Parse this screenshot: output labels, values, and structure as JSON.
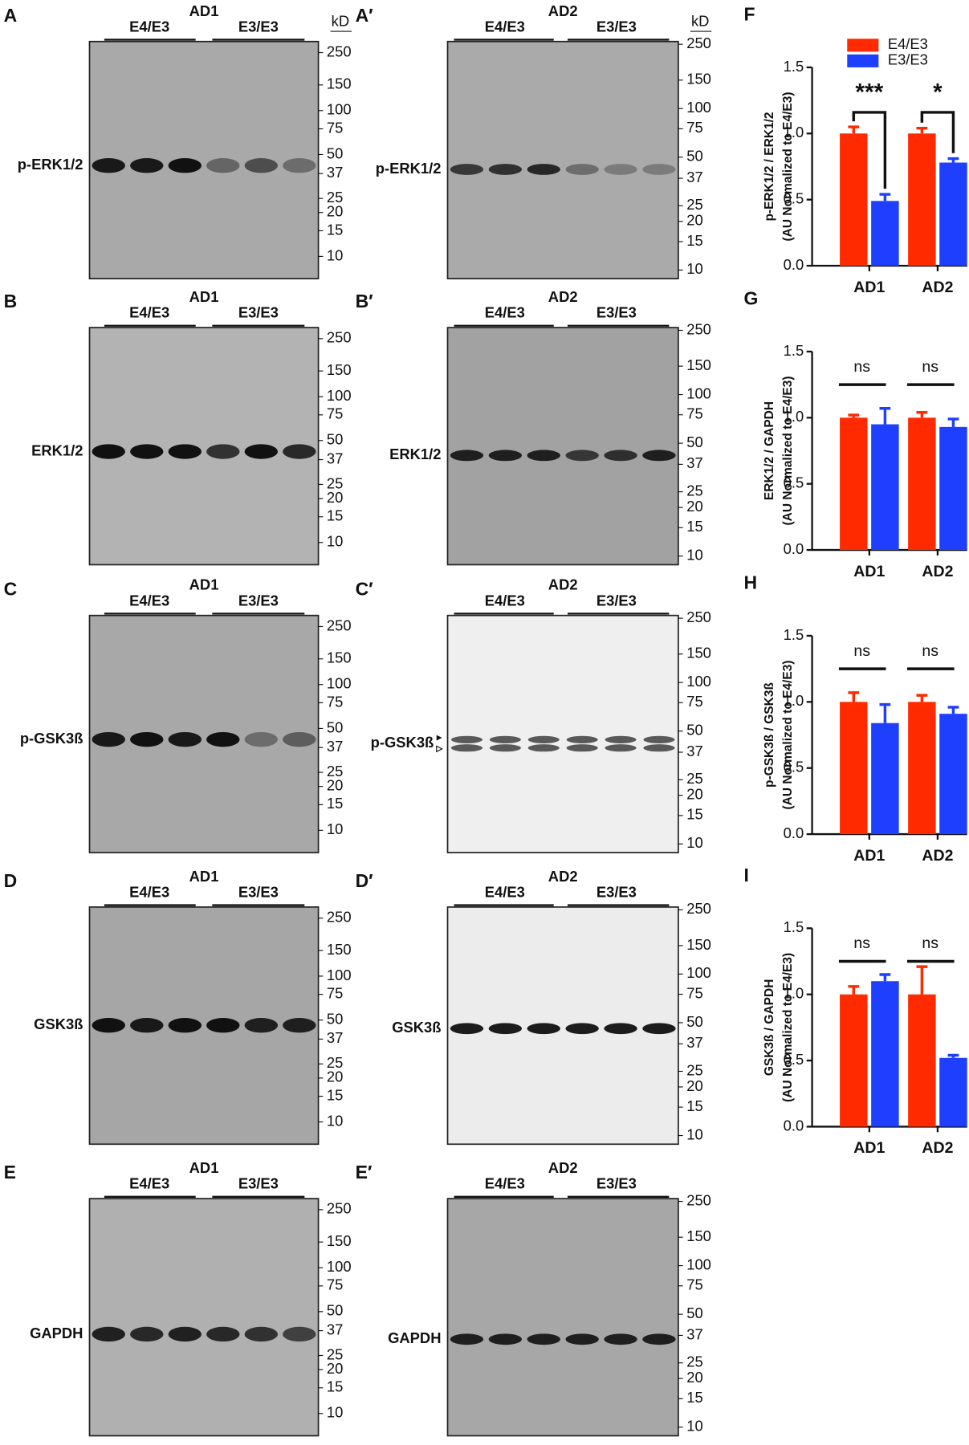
{
  "blots": [
    {
      "letter": "A",
      "group": "AD1",
      "genotypes": [
        "E4/E3",
        "E3/E3"
      ],
      "protein": "p-ERK1/2",
      "unit": "kD",
      "markers": [
        250,
        150,
        100,
        75,
        50,
        37,
        25,
        20,
        15,
        10
      ]
    },
    {
      "letter": "A′",
      "group": "AD2",
      "genotypes": [
        "E4/E3",
        "E3/E3"
      ],
      "protein": "p-ERK1/2",
      "unit": "kD",
      "markers": [
        250,
        150,
        100,
        75,
        50,
        37,
        25,
        20,
        15,
        10
      ]
    },
    {
      "letter": "B",
      "group": "AD1",
      "genotypes": [
        "E4/E3",
        "E3/E3"
      ],
      "protein": "ERK1/2",
      "markers": [
        250,
        150,
        100,
        75,
        50,
        37,
        25,
        20,
        15,
        10
      ]
    },
    {
      "letter": "B′",
      "group": "AD2",
      "genotypes": [
        "E4/E3",
        "E3/E3"
      ],
      "protein": "ERK1/2",
      "markers": [
        250,
        150,
        100,
        75,
        50,
        37,
        25,
        20,
        15,
        10
      ]
    },
    {
      "letter": "C",
      "group": "AD1",
      "genotypes": [
        "E4/E3",
        "E3/E3"
      ],
      "protein": "p-GSK3ß",
      "markers": [
        250,
        150,
        100,
        75,
        50,
        37,
        25,
        20,
        15,
        10
      ]
    },
    {
      "letter": "C′",
      "group": "AD2",
      "genotypes": [
        "E4/E3",
        "E3/E3"
      ],
      "protein": "p-GSK3ß",
      "markers": [
        250,
        150,
        100,
        75,
        50,
        37,
        25,
        20,
        15,
        10
      ]
    },
    {
      "letter": "D",
      "group": "AD1",
      "genotypes": [
        "E4/E3",
        "E3/E3"
      ],
      "protein": "GSK3ß",
      "markers": [
        250,
        150,
        100,
        75,
        50,
        37,
        25,
        20,
        15,
        10
      ]
    },
    {
      "letter": "D′",
      "group": "AD2",
      "genotypes": [
        "E4/E3",
        "E3/E3"
      ],
      "protein": "GSK3ß",
      "markers": [
        250,
        150,
        100,
        75,
        50,
        37,
        25,
        20,
        15,
        10
      ]
    },
    {
      "letter": "E",
      "group": "AD1",
      "genotypes": [
        "E4/E3",
        "E3/E3"
      ],
      "protein": "GAPDH",
      "markers": [
        250,
        150,
        100,
        75,
        50,
        37,
        25,
        20,
        15,
        10
      ]
    },
    {
      "letter": "E′",
      "group": "AD2",
      "genotypes": [
        "E4/E3",
        "E3/E3"
      ],
      "protein": "GAPDH",
      "markers": [
        250,
        150,
        100,
        75,
        50,
        37,
        25,
        20,
        15,
        10
      ]
    }
  ],
  "chart_data": [
    {
      "type": "bar",
      "label": "F",
      "ylabel": [
        "p-ERK1/2 / ERK1/2",
        "(AU Normalized to E4/E3)"
      ],
      "categories": [
        "AD1",
        "AD2"
      ],
      "legend": "upper right",
      "series": [
        {
          "name": "E4/E3",
          "color": "#ff2a00",
          "values": [
            1.0,
            1.0
          ],
          "errors": [
            0.05,
            0.04
          ]
        },
        {
          "name": "E3/E3",
          "color": "#1f3fff",
          "values": [
            0.49,
            0.78
          ],
          "errors": [
            0.05,
            0.03
          ]
        }
      ],
      "annotations": [
        "***",
        "*"
      ],
      "ylim": [
        0,
        1.5
      ],
      "yticks": [
        {
          "value": 0,
          "label": "0.0"
        },
        0.5,
        {
          "value": 1,
          "label": "1.0"
        },
        1.5
      ]
    },
    {
      "type": "bar",
      "label": "G",
      "ylabel": [
        "ERK1/2 / GAPDH",
        "(AU Normalized to E4/E3)"
      ],
      "categories": [
        "AD1",
        "AD2"
      ],
      "series": [
        {
          "name": "E4/E3",
          "color": "#ff2a00",
          "values": [
            1.0,
            1.0
          ],
          "errors": [
            0.02,
            0.04
          ]
        },
        {
          "name": "E3/E3",
          "color": "#1f3fff",
          "values": [
            0.95,
            0.93
          ],
          "errors": [
            0.12,
            0.06
          ]
        }
      ],
      "annotations": [
        "ns",
        "ns"
      ],
      "ylim": [
        0,
        1.5
      ],
      "yticks": [
        {
          "value": 0,
          "label": "0.0"
        },
        0.5,
        {
          "value": 1,
          "label": "1.0"
        },
        1.5
      ]
    },
    {
      "type": "bar",
      "label": "H",
      "ylabel": [
        "p-GSK3ß  /  GSK3ß",
        "(AU Normalized to E4/E3)"
      ],
      "categories": [
        "AD1",
        "AD2"
      ],
      "series": [
        {
          "name": "E4/E3",
          "color": "#ff2a00",
          "values": [
            1.0,
            1.0
          ],
          "errors": [
            0.07,
            0.05
          ]
        },
        {
          "name": "E3/E3",
          "color": "#1f3fff",
          "values": [
            0.84,
            0.91
          ],
          "errors": [
            0.14,
            0.05
          ]
        }
      ],
      "annotations": [
        "ns",
        "ns"
      ],
      "ylim": [
        0,
        1.5
      ],
      "yticks": [
        {
          "value": 0,
          "label": "0.0"
        },
        0.5,
        {
          "value": 1,
          "label": "1.0"
        },
        1.5
      ]
    },
    {
      "type": "bar",
      "label": "I",
      "ylabel": [
        "GSK3ß / GAPDH",
        "(AU Normalized to E4/E3)"
      ],
      "categories": [
        "AD1",
        "AD2"
      ],
      "series": [
        {
          "name": "E4/E3",
          "color": "#ff2a00",
          "values": [
            1.0,
            1.0
          ],
          "errors": [
            0.06,
            0.21
          ]
        },
        {
          "name": "E3/E3",
          "color": "#1f3fff",
          "values": [
            1.1,
            0.52
          ],
          "errors": [
            0.05,
            0.02
          ]
        }
      ],
      "annotations": [
        "ns",
        "ns"
      ],
      "ylim": [
        0,
        1.5
      ],
      "yticks": [
        {
          "value": 0,
          "label": "0.0"
        },
        0.5,
        {
          "value": 1,
          "label": "1.0"
        },
        1.5
      ]
    }
  ]
}
